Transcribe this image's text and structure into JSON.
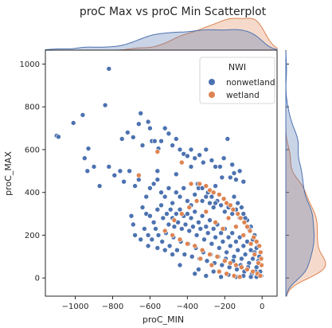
{
  "chart_data": {
    "type": "scatter",
    "title": "proC Max vs proC Min Scatterplot",
    "xlabel": "proC_MIN",
    "ylabel": "proC_MAX",
    "xlim": [
      -1160,
      80
    ],
    "ylim": [
      -85,
      1065
    ],
    "xticks": [
      "−1000",
      "−800",
      "−600",
      "−400",
      "−200",
      "0"
    ],
    "xtick_values": [
      -1000,
      -800,
      -600,
      -400,
      -200,
      0
    ],
    "yticks": [
      "0",
      "200",
      "400",
      "600",
      "800",
      "1000"
    ],
    "ytick_values": [
      0,
      200,
      400,
      600,
      800,
      1000
    ],
    "grid": false,
    "legend_title": "NWI",
    "legend_position": "top-right",
    "marginals": "kde (top for proC_MIN, right for proC_MAX), filled per hue",
    "series": [
      {
        "name": "nonwetland",
        "color": "#4c72b0",
        "points": [
          [
            -820,
            978
          ],
          [
            -1100,
            665
          ],
          [
            -1090,
            660
          ],
          [
            -1010,
            725
          ],
          [
            -960,
            762
          ],
          [
            -840,
            808
          ],
          [
            -750,
            650
          ],
          [
            -720,
            680
          ],
          [
            -690,
            658
          ],
          [
            -660,
            720
          ],
          [
            -650,
            770
          ],
          [
            -640,
            620
          ],
          [
            -610,
            730
          ],
          [
            -600,
            700
          ],
          [
            -590,
            640
          ],
          [
            -575,
            640
          ],
          [
            -555,
            605
          ],
          [
            -540,
            640
          ],
          [
            -520,
            700
          ],
          [
            -500,
            675
          ],
          [
            -480,
            620
          ],
          [
            -460,
            650
          ],
          [
            -440,
            600
          ],
          [
            -420,
            580
          ],
          [
            -400,
            570
          ],
          [
            -380,
            600
          ],
          [
            -360,
            560
          ],
          [
            -335,
            575
          ],
          [
            -315,
            540
          ],
          [
            -300,
            600
          ],
          [
            -270,
            550
          ],
          [
            -250,
            520
          ],
          [
            -225,
            520
          ],
          [
            -205,
            560
          ],
          [
            -185,
            650
          ],
          [
            -170,
            470
          ],
          [
            -160,
            530
          ],
          [
            -150,
            490
          ],
          [
            -140,
            460
          ],
          [
            -120,
            500
          ],
          [
            -100,
            450
          ],
          [
            -950,
            560
          ],
          [
            -935,
            500
          ],
          [
            -900,
            520
          ],
          [
            -820,
            520
          ],
          [
            -790,
            480
          ],
          [
            -760,
            500
          ],
          [
            -740,
            450
          ],
          [
            -710,
            500
          ],
          [
            -680,
            430
          ],
          [
            -660,
            460
          ],
          [
            -620,
            380
          ],
          [
            -600,
            420
          ],
          [
            -580,
            440
          ],
          [
            -560,
            460
          ],
          [
            -540,
            400
          ],
          [
            -520,
            380
          ],
          [
            -500,
            420
          ],
          [
            -480,
            350
          ],
          [
            -460,
            400
          ],
          [
            -440,
            380
          ],
          [
            -420,
            420
          ],
          [
            -400,
            360
          ],
          [
            -380,
            340
          ],
          [
            -360,
            390
          ],
          [
            -340,
            420
          ],
          [
            -320,
            360
          ],
          [
            -300,
            380
          ],
          [
            -280,
            350
          ],
          [
            -260,
            330
          ],
          [
            -240,
            360
          ],
          [
            -220,
            340
          ],
          [
            -200,
            310
          ],
          [
            -180,
            330
          ],
          [
            -160,
            300
          ],
          [
            -140,
            320
          ],
          [
            -120,
            280
          ],
          [
            -100,
            300
          ],
          [
            -80,
            270
          ],
          [
            -60,
            240
          ],
          [
            -40,
            200
          ],
          [
            -20,
            150
          ],
          [
            -640,
            330
          ],
          [
            -620,
            300
          ],
          [
            -600,
            290
          ],
          [
            -580,
            260
          ],
          [
            -570,
            230
          ],
          [
            -560,
            320
          ],
          [
            -540,
            340
          ],
          [
            -530,
            280
          ],
          [
            -510,
            300
          ],
          [
            -500,
            250
          ],
          [
            -490,
            320
          ],
          [
            -480,
            280
          ],
          [
            -470,
            240
          ],
          [
            -460,
            300
          ],
          [
            -450,
            260
          ],
          [
            -440,
            320
          ],
          [
            -430,
            230
          ],
          [
            -420,
            290
          ],
          [
            -410,
            250
          ],
          [
            -400,
            300
          ],
          [
            -390,
            220
          ],
          [
            -380,
            280
          ],
          [
            -370,
            240
          ],
          [
            -360,
            310
          ],
          [
            -350,
            200
          ],
          [
            -340,
            260
          ],
          [
            -330,
            230
          ],
          [
            -320,
            290
          ],
          [
            -310,
            180
          ],
          [
            -300,
            240
          ],
          [
            -290,
            210
          ],
          [
            -280,
            270
          ],
          [
            -270,
            160
          ],
          [
            -260,
            230
          ],
          [
            -250,
            190
          ],
          [
            -240,
            250
          ],
          [
            -230,
            140
          ],
          [
            -220,
            210
          ],
          [
            -210,
            170
          ],
          [
            -200,
            230
          ],
          [
            -190,
            120
          ],
          [
            -180,
            190
          ],
          [
            -170,
            150
          ],
          [
            -160,
            210
          ],
          [
            -150,
            100
          ],
          [
            -140,
            170
          ],
          [
            -130,
            130
          ],
          [
            -120,
            190
          ],
          [
            -110,
            90
          ],
          [
            -100,
            150
          ],
          [
            -90,
            110
          ],
          [
            -80,
            170
          ],
          [
            -70,
            70
          ],
          [
            -60,
            130
          ],
          [
            -50,
            90
          ],
          [
            -40,
            120
          ],
          [
            -30,
            50
          ],
          [
            -20,
            80
          ],
          [
            -10,
            30
          ],
          [
            -5,
            10
          ],
          [
            -700,
            290
          ],
          [
            -690,
            250
          ],
          [
            -680,
            200
          ],
          [
            -650,
            180
          ],
          [
            -630,
            230
          ],
          [
            -610,
            200
          ],
          [
            -590,
            180
          ],
          [
            -555,
            200
          ],
          [
            -535,
            170
          ],
          [
            -515,
            210
          ],
          [
            -495,
            150
          ],
          [
            -475,
            190
          ],
          [
            -455,
            130
          ],
          [
            -435,
            170
          ],
          [
            -415,
            110
          ],
          [
            -395,
            160
          ],
          [
            -375,
            100
          ],
          [
            -355,
            140
          ],
          [
            -335,
            90
          ],
          [
            -315,
            120
          ],
          [
            -295,
            80
          ],
          [
            -275,
            110
          ],
          [
            -255,
            70
          ],
          [
            -235,
            100
          ],
          [
            -215,
            60
          ],
          [
            -195,
            90
          ],
          [
            -175,
            50
          ],
          [
            -155,
            80
          ],
          [
            -135,
            40
          ],
          [
            -115,
            60
          ],
          [
            -95,
            30
          ],
          [
            -75,
            50
          ],
          [
            -55,
            20
          ],
          [
            -35,
            30
          ],
          [
            -15,
            10
          ],
          [
            -870,
            430
          ],
          [
            -930,
            605
          ],
          [
            -560,
            500
          ],
          [
            -460,
            485
          ],
          [
            -380,
            520
          ],
          [
            -250,
            430
          ],
          [
            -215,
            470
          ],
          [
            -360,
            20
          ],
          [
            -340,
            40
          ],
          [
            -300,
            10
          ],
          [
            -260,
            30
          ],
          [
            -220,
            5
          ],
          [
            -180,
            15
          ],
          [
            -140,
            5
          ],
          [
            -100,
            10
          ],
          [
            -60,
            5
          ],
          [
            -30,
            5
          ],
          [
            -440,
            60
          ],
          [
            -480,
            110
          ],
          [
            -520,
            130
          ],
          [
            -560,
            140
          ],
          [
            -610,
            150
          ],
          [
            -250,
            350
          ],
          [
            -270,
            380
          ],
          [
            -290,
            400
          ],
          [
            -320,
            420
          ],
          [
            -345,
            440
          ],
          [
            -150,
            380
          ],
          [
            -130,
            350
          ],
          [
            -110,
            330
          ],
          [
            -90,
            280
          ],
          [
            -70,
            230
          ],
          [
            -50,
            180
          ],
          [
            -30,
            140
          ],
          [
            -15,
            100
          ],
          [
            -5,
            60
          ]
        ]
      },
      {
        "name": "wetland",
        "color": "#dd8452",
        "points": [
          [
            -660,
            480
          ],
          [
            -560,
            590
          ],
          [
            -430,
            540
          ],
          [
            -380,
            440
          ],
          [
            -335,
            440
          ],
          [
            -300,
            430
          ],
          [
            -280,
            410
          ],
          [
            -260,
            400
          ],
          [
            -230,
            390
          ],
          [
            -205,
            370
          ],
          [
            -190,
            350
          ],
          [
            -170,
            340
          ],
          [
            -155,
            320
          ],
          [
            -130,
            300
          ],
          [
            -115,
            280
          ],
          [
            -95,
            260
          ],
          [
            -80,
            240
          ],
          [
            -65,
            220
          ],
          [
            -45,
            190
          ],
          [
            -30,
            170
          ],
          [
            -15,
            150
          ],
          [
            -8,
            120
          ],
          [
            -5,
            90
          ],
          [
            -3,
            60
          ],
          [
            -520,
            220
          ],
          [
            -480,
            200
          ],
          [
            -440,
            180
          ],
          [
            -400,
            160
          ],
          [
            -360,
            150
          ],
          [
            -320,
            130
          ],
          [
            -280,
            110
          ],
          [
            -240,
            100
          ],
          [
            -200,
            80
          ],
          [
            -170,
            70
          ],
          [
            -140,
            60
          ],
          [
            -110,
            50
          ],
          [
            -80,
            40
          ],
          [
            -50,
            30
          ],
          [
            -25,
            20
          ],
          [
            -10,
            10
          ],
          [
            -230,
            30
          ],
          [
            -190,
            20
          ],
          [
            -150,
            10
          ],
          [
            -120,
            5
          ],
          [
            -270,
            60
          ],
          [
            -330,
            90
          ],
          [
            -470,
            270
          ],
          [
            -430,
            300
          ],
          [
            -390,
            330
          ],
          [
            -350,
            360
          ],
          [
            -300,
            310
          ],
          [
            -250,
            260
          ],
          [
            -210,
            230
          ],
          [
            -180,
            280
          ],
          [
            -140,
            240
          ],
          [
            -100,
            200
          ],
          [
            -60,
            160
          ],
          [
            -40,
            110
          ],
          [
            -20,
            70
          ]
        ]
      }
    ]
  }
}
